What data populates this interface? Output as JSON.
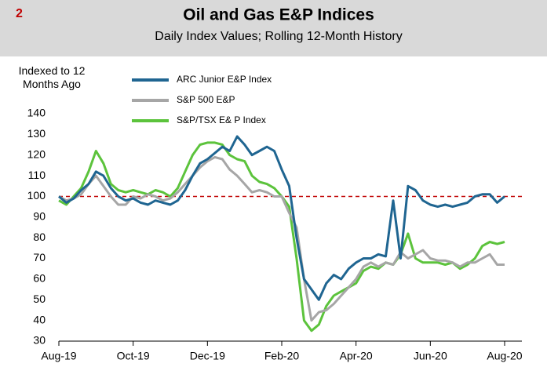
{
  "figure_number": "2",
  "chart_data": {
    "type": "line",
    "title": "Oil and Gas E&P Indices",
    "subtitle": "Daily Index Values; Rolling 12-Month History",
    "ylabel": "Indexed to 12 Months Ago",
    "categories": [
      "Aug-19",
      null,
      null,
      null,
      null,
      null,
      null,
      null,
      null,
      null,
      "Oct-19",
      null,
      null,
      null,
      null,
      null,
      null,
      null,
      null,
      null,
      "Dec-19",
      null,
      null,
      null,
      null,
      null,
      null,
      null,
      null,
      null,
      "Feb-20",
      null,
      null,
      null,
      null,
      null,
      null,
      null,
      null,
      null,
      "Apr-20",
      null,
      null,
      null,
      null,
      null,
      null,
      null,
      null,
      null,
      "Jun-20",
      null,
      null,
      null,
      null,
      null,
      null,
      null,
      null,
      null,
      "Aug-20"
    ],
    "series": [
      {
        "name": "ARC Junior E&P Index",
        "color": "#1f6591",
        "values": [
          100,
          97,
          99,
          103,
          106,
          112,
          110,
          104,
          100,
          98,
          99,
          97,
          96,
          98,
          97,
          96,
          98,
          103,
          110,
          116,
          118,
          121,
          124,
          122,
          129,
          125,
          120,
          122,
          124,
          122,
          113,
          105,
          80,
          60,
          55,
          50,
          58,
          62,
          60,
          65,
          68,
          70,
          70,
          72,
          71,
          98,
          70,
          105,
          103,
          98,
          96,
          95,
          96,
          95,
          96,
          97,
          100,
          101,
          101,
          97,
          100
        ]
      },
      {
        "name": "S&P 500 E&P",
        "color": "#a6a6a6",
        "values": [
          100,
          98,
          99,
          101,
          106,
          110,
          105,
          100,
          96,
          96,
          100,
          99,
          101,
          100,
          98,
          99,
          102,
          106,
          110,
          114,
          117,
          119,
          118,
          113,
          110,
          106,
          102,
          103,
          102,
          100,
          100,
          92,
          85,
          60,
          40,
          44,
          45,
          48,
          52,
          56,
          60,
          66,
          68,
          66,
          68,
          67,
          73,
          70,
          72,
          74,
          70,
          69,
          69,
          68,
          66,
          68,
          68,
          70,
          72,
          67,
          67
        ]
      },
      {
        "name": "S&P/TSX E& P Index",
        "color": "#5cc33c",
        "values": [
          98,
          96,
          100,
          104,
          112,
          122,
          116,
          106,
          103,
          102,
          103,
          102,
          101,
          103,
          102,
          100,
          104,
          112,
          120,
          125,
          126,
          126,
          125,
          120,
          118,
          117,
          110,
          107,
          106,
          104,
          100,
          95,
          70,
          40,
          35,
          38,
          47,
          52,
          54,
          56,
          58,
          64,
          66,
          65,
          68,
          67,
          72,
          82,
          70,
          68,
          68,
          68,
          67,
          68,
          65,
          67,
          70,
          76,
          78,
          77,
          78
        ]
      }
    ],
    "ylim": [
      30,
      140
    ],
    "yticks": [
      30,
      40,
      50,
      60,
      70,
      80,
      90,
      100,
      110,
      120,
      130,
      140
    ],
    "reference_line": {
      "value": 100,
      "color": "#c00000"
    },
    "legend": "upper left"
  }
}
